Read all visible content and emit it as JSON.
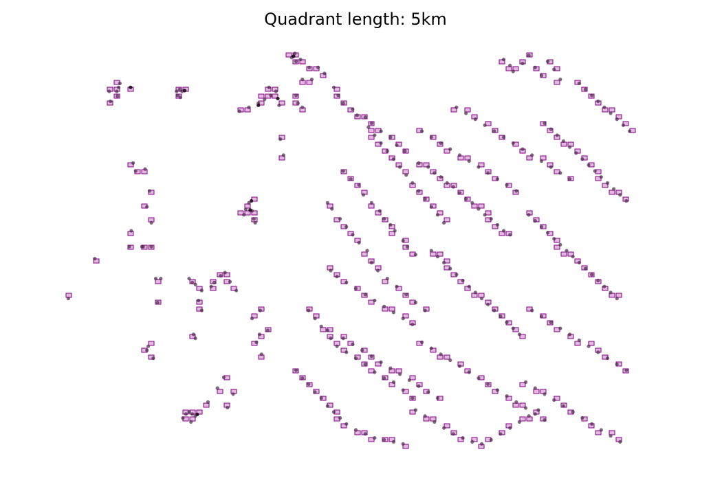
{
  "chart_data": {
    "type": "scatter",
    "title": "Quadrant length: 5km",
    "axes_visible": false,
    "grid": false,
    "xlim": [
      0,
      100
    ],
    "ylim": [
      0,
      100
    ],
    "colors": {
      "point": "#4a2a4a",
      "point_dense": "#1a0a1a",
      "quadrant_edge": "#800080",
      "quadrant_fill": "#c97fc9"
    },
    "clusters": [
      {
        "x": [
          8.5,
          14,
          16,
          16.2,
          17.5,
          14.3,
          4.3
        ],
        "y": [
          48,
          51,
          51,
          51,
          51,
          55,
          38
        ]
      },
      {
        "x": [
          10.8,
          12,
          12.5,
          12.3,
          12.1,
          11
        ],
        "y": [
          90,
          90,
          92,
          91,
          88.8,
          87.5
        ]
      },
      {
        "x": [
          21.5,
          22,
          22.4,
          22.1,
          21.7
        ],
        "y": [
          90,
          90.5,
          90,
          88.5,
          89
        ]
      },
      {
        "x": [
          14.6,
          15,
          16.5,
          16.8,
          17.2,
          17.5
        ],
        "y": [
          72,
          70,
          70.5,
          61,
          65,
          57
        ]
      },
      {
        "x": [
          18.5,
          18.2,
          19,
          17.8,
          16.8,
          17
        ],
        "y": [
          37,
          43,
          43,
          23,
          25,
          26
        ]
      },
      {
        "x": [
          32.5,
          33.5,
          32.2,
          33.8,
          34,
          33
        ],
        "y": [
          60.4,
          60,
          59,
          58,
          57,
          62
        ]
      },
      {
        "x": [
          31.5,
          33,
          34.5,
          35.5,
          36.5,
          37.3,
          36.2,
          37.8
        ],
        "y": [
          85,
          86,
          87,
          88,
          89,
          90,
          91,
          86.5
        ]
      },
      {
        "x": [
          39.8,
          40.3,
          40.5,
          41.2,
          42.6,
          41.5
        ],
        "y": [
          98.5,
          99.5,
          97.5,
          98,
          96,
          93
        ]
      },
      {
        "x": [
          41.5,
          40.8,
          40.5,
          38,
          38.5
        ],
        "y": [
          86,
          87,
          89,
          78,
          74
        ]
      },
      {
        "x": [
          23.5,
          24,
          24.5,
          25.5,
          25,
          24.2,
          24.5,
          25.5
        ],
        "y": [
          43,
          42,
          41.5,
          40,
          37.5,
          29,
          28,
          35
        ]
      },
      {
        "x": [
          27,
          27.5,
          28.5,
          29.2,
          30,
          31
        ],
        "y": [
          41,
          42,
          43.7,
          44.5,
          42.2,
          40
        ]
      },
      {
        "x": [
          22.5,
          23,
          23.5,
          24,
          24.5,
          23.8
        ],
        "y": [
          8,
          9,
          9.5,
          9,
          8.5,
          7
        ]
      },
      {
        "x": [
          26.5,
          28,
          29,
          29.6,
          30.5
        ],
        "y": [
          12,
          15.5,
          18.2,
          10.6,
          14
        ]
      },
      {
        "x": [
          35,
          34.2,
          34.7,
          36,
          33.5,
          34.8
        ],
        "y": [
          24,
          27,
          29,
          30,
          33,
          35
        ]
      },
      {
        "x": [
          43,
          44,
          45,
          46.5,
          47.2,
          48,
          49.5,
          50.2,
          51.5,
          52.5,
          54,
          55.5,
          56.5,
          57.8
        ],
        "y": [
          93,
          96,
          94.5,
          91,
          89,
          87,
          85.5,
          84,
          83.5,
          82,
          80,
          78.5,
          76.5,
          75
        ]
      },
      {
        "x": [
          48,
          49.2,
          50.5,
          51.2,
          52.5,
          53.8,
          54.5,
          55.5,
          56.2,
          57.5,
          58.2,
          59.5
        ],
        "y": [
          70,
          68,
          66.5,
          64,
          62,
          60,
          58,
          56.5,
          55,
          52.5,
          51,
          49
        ]
      },
      {
        "x": [
          45.5,
          46.2,
          47.5,
          48.5,
          49.5,
          50.5,
          51.8,
          52.5,
          53.5,
          55,
          56.5,
          58,
          59.5,
          61
        ],
        "y": [
          62,
          60.5,
          58,
          56,
          54,
          52,
          50,
          47,
          45,
          43,
          41,
          39,
          37,
          35
        ]
      },
      {
        "x": [
          42.5,
          43.5,
          44.5,
          45.5,
          46,
          47,
          48.5,
          50,
          51.5,
          53,
          54.5,
          56,
          57.5,
          59
        ],
        "y": [
          35,
          33,
          31,
          30,
          28,
          26,
          24.5,
          23,
          21.5,
          19.5,
          18,
          17,
          15,
          13
        ]
      },
      {
        "x": [
          40.5,
          41.5,
          42.5,
          43.5,
          44.5,
          45.5,
          46.5,
          47.5,
          48.5,
          50,
          51.5,
          53,
          54.5,
          56,
          57.5
        ],
        "y": [
          20,
          18,
          16.5,
          14.5,
          13,
          11,
          9.5,
          8,
          6.5,
          5,
          4,
          3,
          2.5,
          2,
          1.5
        ]
      },
      {
        "x": [
          60,
          61.5,
          62.5,
          63.5,
          64.5,
          65.5,
          66.5,
          67.5,
          68.5,
          69.5,
          70.5,
          71.5,
          72.5,
          73.5,
          74.5
        ],
        "y": [
          72,
          71,
          69.5,
          68.5,
          67,
          66,
          64.5,
          63,
          62,
          60.5,
          59,
          58,
          56.5,
          55,
          54
        ]
      },
      {
        "x": [
          62,
          63,
          64,
          65,
          66,
          67,
          68,
          69,
          70,
          71,
          72,
          73,
          74,
          75,
          76
        ],
        "y": [
          50,
          48.5,
          47,
          45.5,
          44,
          42.5,
          41,
          39.5,
          38,
          36.5,
          35,
          33.5,
          32,
          30.5,
          29
        ]
      },
      {
        "x": [
          60.5,
          62,
          63.5,
          65,
          66.5,
          68,
          69.5,
          71,
          72.5,
          74,
          75.5,
          77,
          78.5,
          80
        ],
        "y": [
          27,
          25.5,
          24,
          22.5,
          21,
          19.5,
          18,
          16.5,
          15,
          13.5,
          12,
          10.5,
          9,
          7.5
        ]
      },
      {
        "x": [
          59.5,
          61,
          62.5,
          64,
          65.5,
          67,
          68.5,
          70,
          71.5,
          73,
          74.5,
          76,
          77.5,
          79
        ],
        "y": [
          10,
          8.5,
          7,
          5.5,
          4,
          3,
          2,
          1.5,
          2.5,
          4,
          5.5,
          7,
          8.5,
          10
        ]
      },
      {
        "x": [
          73.5,
          74.5,
          75,
          76.5,
          77.5,
          78.5,
          79.5,
          80.5,
          81.5,
          82.5
        ],
        "y": [
          98,
          96.5,
          95,
          97,
          99,
          96,
          94,
          97.5,
          95.5,
          93
        ]
      },
      {
        "x": [
          80,
          81,
          82,
          83,
          84,
          85,
          86,
          87,
          88,
          89,
          90,
          91,
          92,
          93
        ],
        "y": [
          82,
          80.5,
          79,
          77.5,
          76,
          74.5,
          73,
          71.5,
          70,
          68.5,
          67,
          65.5,
          64,
          62.5
        ]
      },
      {
        "x": [
          77.5,
          78.5,
          79.5,
          80.5,
          81.5,
          82.5,
          83.5,
          84.5,
          85.5,
          86.5,
          87.5,
          88.5,
          89.5,
          90.5,
          91.5
        ],
        "y": [
          59,
          57.5,
          56,
          54.5,
          53,
          51.5,
          50,
          48.5,
          47,
          45.5,
          44,
          42.5,
          41,
          39.5,
          38
        ]
      },
      {
        "x": [
          78,
          79.5,
          81,
          82.5,
          84,
          85.5,
          87,
          88.5,
          90,
          91.5,
          93
        ],
        "y": [
          35,
          33.5,
          32,
          30.5,
          29,
          27.5,
          26,
          24.5,
          23,
          21.5,
          20
        ]
      },
      {
        "x": [
          77,
          78.5,
          80,
          81.5,
          83,
          84.5,
          86,
          87.5,
          89,
          90.5,
          92
        ],
        "y": [
          17,
          15.5,
          14,
          12.5,
          11,
          9.5,
          8,
          6.5,
          5,
          3.5,
          2
        ]
      },
      {
        "x": [
          85.5,
          86.5,
          87.5,
          88.5,
          89.5,
          90.5,
          91.5,
          92.5,
          93.5
        ],
        "y": [
          92,
          90.5,
          89,
          87.5,
          86,
          84.5,
          83,
          81.5,
          80
        ]
      },
      {
        "x": [
          52,
          53,
          54,
          55,
          56,
          57,
          58,
          59,
          60,
          61,
          62,
          63,
          64
        ],
        "y": [
          81,
          79,
          77,
          75,
          73,
          71,
          69,
          67,
          65,
          63,
          61,
          59,
          57
        ]
      },
      {
        "x": [
          46,
          47,
          48.5,
          50,
          51.5,
          53,
          54.5,
          56,
          57.5,
          59
        ],
        "y": [
          45,
          43.5,
          42,
          40.5,
          39,
          37.5,
          36,
          34.5,
          33,
          31.5
        ]
      },
      {
        "x": [
          66,
          67.5,
          69,
          70.5,
          72,
          73.5,
          75,
          76.5,
          78,
          79.5,
          81,
          82.5,
          84
        ],
        "y": [
          86,
          84.5,
          83,
          81.5,
          80,
          78.5,
          77,
          75.5,
          74,
          72.5,
          71,
          69.5,
          68
        ]
      },
      {
        "x": [
          48,
          49.5,
          51,
          52.5,
          54,
          55.5,
          57,
          58.5,
          60,
          61.5,
          63
        ],
        "y": [
          28,
          26.5,
          25,
          23.5,
          22,
          20.5,
          19,
          17.5,
          16,
          14.5,
          13
        ]
      },
      {
        "x": [
          60.5,
          62,
          63.5,
          65,
          66.5,
          68,
          69.5,
          71,
          72.5,
          74,
          75.5
        ],
        "y": [
          80,
          78.5,
          77,
          75.5,
          74,
          72.5,
          71,
          69.5,
          68,
          66.5,
          65
        ]
      }
    ],
    "dense_points": [
      {
        "x": 14.2,
        "y": 91
      },
      {
        "x": 22.8,
        "y": 90.2
      },
      {
        "x": 33.2,
        "y": 60.2
      },
      {
        "x": 34.5,
        "y": 86.5
      },
      {
        "x": 37.6,
        "y": 88.2
      },
      {
        "x": 40.1,
        "y": 98.8
      },
      {
        "x": 24.8,
        "y": 8.9
      },
      {
        "x": 33.4,
        "y": 62.5
      }
    ]
  }
}
